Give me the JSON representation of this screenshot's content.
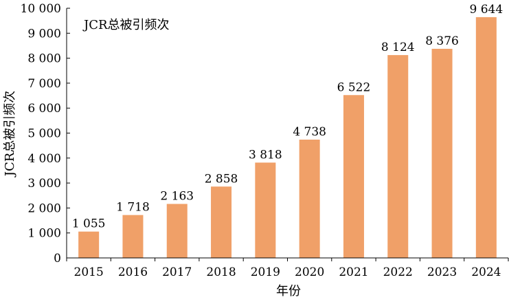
{
  "chart_data": {
    "type": "bar",
    "title": "JCR总被引频次",
    "xlabel": "年份",
    "ylabel": "JCR总被引频次",
    "categories": [
      "2015",
      "2016",
      "2017",
      "2018",
      "2019",
      "2020",
      "2021",
      "2022",
      "2023",
      "2024"
    ],
    "values": [
      1055,
      1718,
      2163,
      2858,
      3818,
      4738,
      6522,
      8124,
      8376,
      9644
    ],
    "value_labels": [
      "1 055",
      "1 718",
      "2 163",
      "2 858",
      "3 818",
      "4 738",
      "6 522",
      "8 124",
      "8 376",
      "9 644"
    ],
    "ylim": [
      0,
      10000
    ],
    "y_ticks": [
      0,
      1000,
      2000,
      3000,
      4000,
      5000,
      6000,
      7000,
      8000,
      9000,
      10000
    ],
    "y_tick_labels": [
      "0",
      "1 000",
      "2 000",
      "3 000",
      "4 000",
      "5 000",
      "6 000",
      "7 000",
      "8 000",
      "9 000",
      "10 000"
    ],
    "grid": false,
    "bar_color": "#F0A068",
    "axis_color": "#000000"
  }
}
